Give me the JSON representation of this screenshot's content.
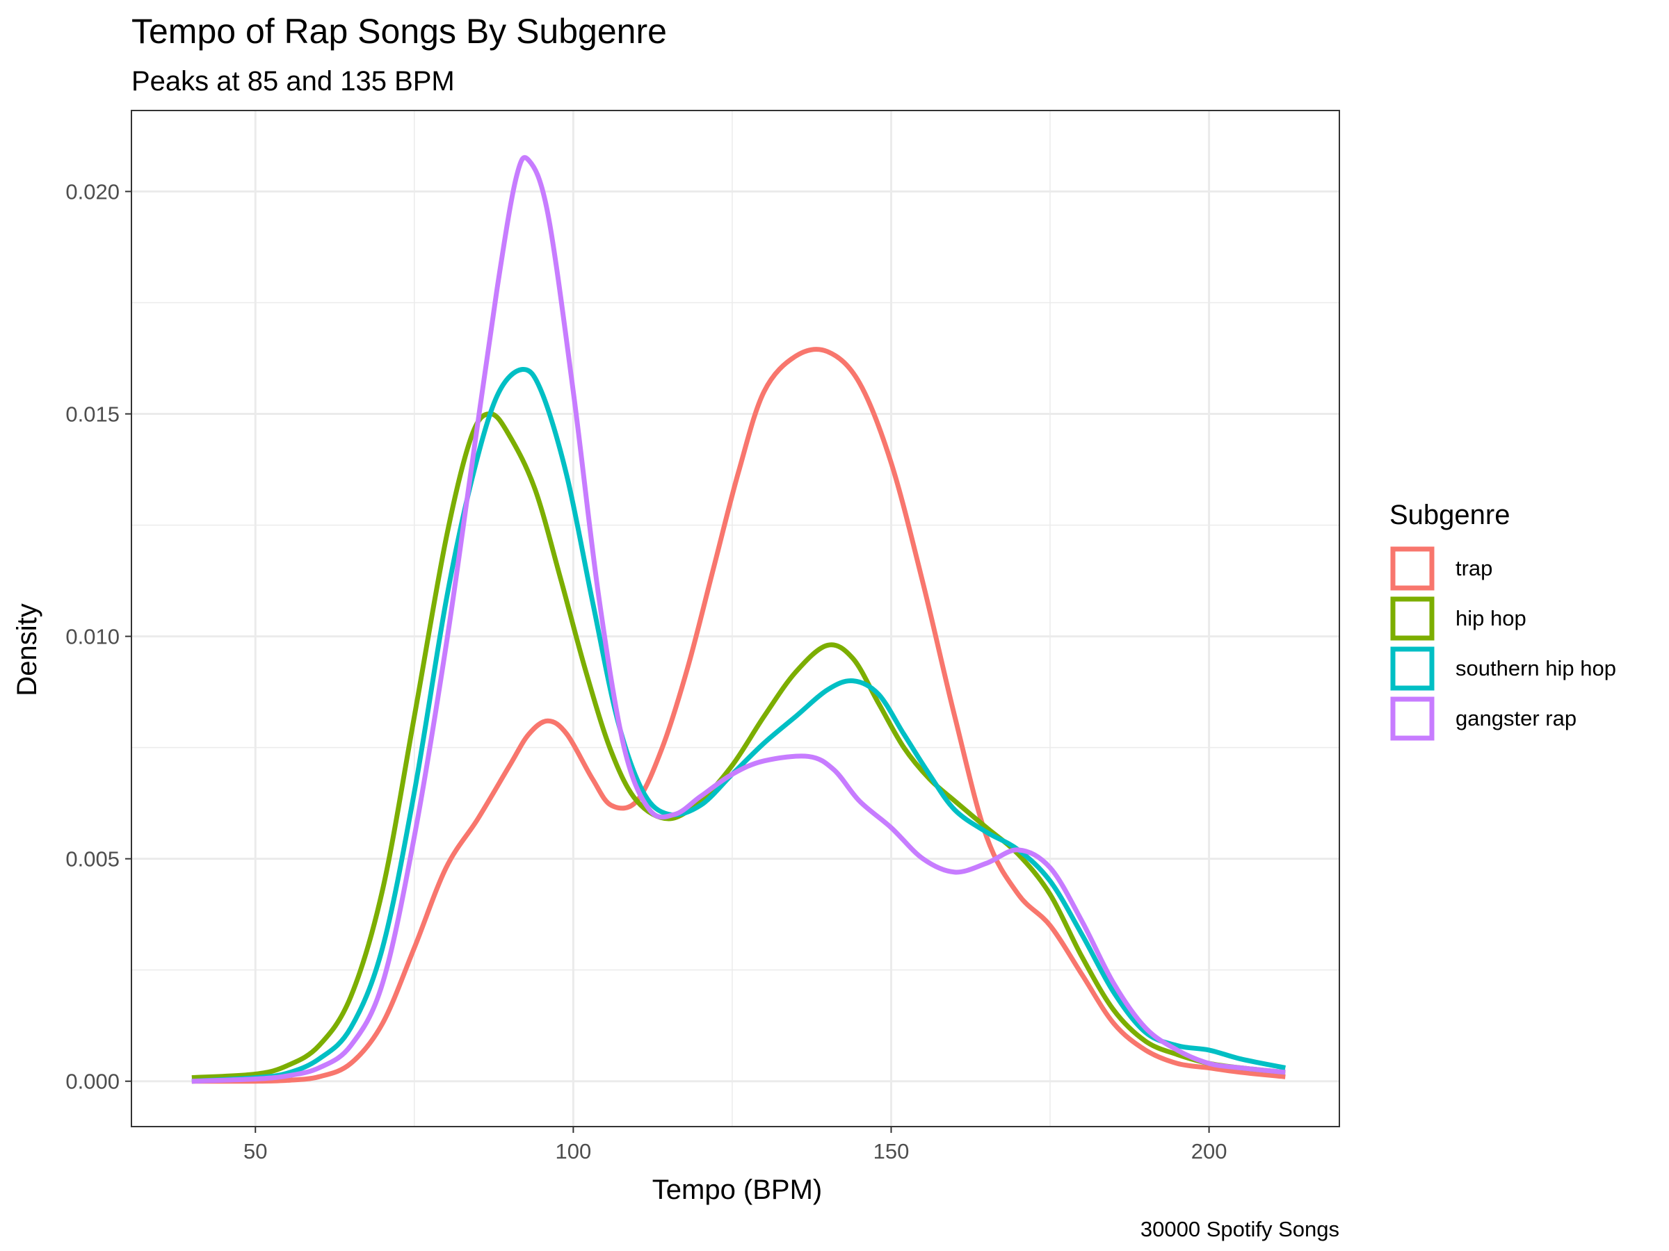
{
  "chart_data": {
    "type": "line",
    "title": "Tempo of Rap Songs By Subgenre",
    "subtitle": "Peaks at 85 and 135 BPM",
    "caption": "30000 Spotify Songs",
    "xlabel": "Tempo (BPM)",
    "ylabel": "Density",
    "xlim": [
      30.5,
      220.5
    ],
    "ylim": [
      -0.00102,
      0.02182
    ],
    "x_ticks": [
      50,
      100,
      150,
      200
    ],
    "x_tick_labels": [
      "50",
      "100",
      "150",
      "200"
    ],
    "y_ticks": [
      0,
      0.005,
      0.01,
      0.015,
      0.02
    ],
    "y_tick_labels": [
      "0.000",
      "0.005",
      "0.010",
      "0.015",
      "0.020"
    ],
    "grid": true,
    "legend": {
      "title": "Subgenre",
      "position": "right"
    },
    "series": [
      {
        "name": "trap",
        "color": "#F8766D",
        "points": [
          [
            40,
            0.0
          ],
          [
            50,
            0.0
          ],
          [
            55,
            2e-05
          ],
          [
            60,
            0.0001
          ],
          [
            65,
            0.0004
          ],
          [
            70,
            0.0013
          ],
          [
            75,
            0.003
          ],
          [
            80,
            0.0048
          ],
          [
            85,
            0.0059
          ],
          [
            90,
            0.0071
          ],
          [
            93,
            0.0078
          ],
          [
            96,
            0.0081
          ],
          [
            99,
            0.0078
          ],
          [
            103,
            0.0068
          ],
          [
            106,
            0.0062
          ],
          [
            110,
            0.0063
          ],
          [
            114,
            0.0075
          ],
          [
            118,
            0.0093
          ],
          [
            122,
            0.0115
          ],
          [
            126,
            0.0137
          ],
          [
            130,
            0.0155
          ],
          [
            135,
            0.0163
          ],
          [
            140,
            0.0164
          ],
          [
            145,
            0.0157
          ],
          [
            150,
            0.0139
          ],
          [
            155,
            0.0112
          ],
          [
            160,
            0.0082
          ],
          [
            165,
            0.0055
          ],
          [
            170,
            0.0042
          ],
          [
            175,
            0.0035
          ],
          [
            180,
            0.0024
          ],
          [
            185,
            0.0013
          ],
          [
            190,
            0.0007
          ],
          [
            195,
            0.0004
          ],
          [
            200,
            0.0003
          ],
          [
            205,
            0.0002
          ],
          [
            212,
            0.0001
          ]
        ]
      },
      {
        "name": "hip hop",
        "color": "#7CAE00",
        "points": [
          [
            40,
            8e-05
          ],
          [
            50,
            0.00016
          ],
          [
            55,
            0.00035
          ],
          [
            60,
            0.0008
          ],
          [
            65,
            0.0019
          ],
          [
            70,
            0.0043
          ],
          [
            75,
            0.0082
          ],
          [
            80,
            0.0122
          ],
          [
            84,
            0.0145
          ],
          [
            87,
            0.015
          ],
          [
            90,
            0.0145
          ],
          [
            94,
            0.0133
          ],
          [
            98,
            0.0113
          ],
          [
            102,
            0.0092
          ],
          [
            106,
            0.0074
          ],
          [
            110,
            0.0063
          ],
          [
            115,
            0.0059
          ],
          [
            120,
            0.0063
          ],
          [
            125,
            0.0071
          ],
          [
            130,
            0.0082
          ],
          [
            135,
            0.0092
          ],
          [
            140,
            0.0098
          ],
          [
            144,
            0.0095
          ],
          [
            148,
            0.0085
          ],
          [
            152,
            0.0075
          ],
          [
            156,
            0.0068
          ],
          [
            160,
            0.0063
          ],
          [
            165,
            0.0057
          ],
          [
            170,
            0.0051
          ],
          [
            175,
            0.0042
          ],
          [
            180,
            0.0028
          ],
          [
            185,
            0.0016
          ],
          [
            190,
            0.0009
          ],
          [
            195,
            0.0006
          ],
          [
            200,
            0.0004
          ],
          [
            205,
            0.0003
          ],
          [
            212,
            0.0002
          ]
        ]
      },
      {
        "name": "southern hip hop",
        "color": "#00BFC4",
        "points": [
          [
            40,
            0.0
          ],
          [
            50,
            8e-05
          ],
          [
            55,
            0.00018
          ],
          [
            60,
            0.0005
          ],
          [
            65,
            0.0012
          ],
          [
            70,
            0.003
          ],
          [
            75,
            0.0065
          ],
          [
            80,
            0.0108
          ],
          [
            84,
            0.0135
          ],
          [
            88,
            0.0154
          ],
          [
            92,
            0.016
          ],
          [
            95,
            0.0155
          ],
          [
            99,
            0.0136
          ],
          [
            103,
            0.0108
          ],
          [
            107,
            0.0081
          ],
          [
            111,
            0.0065
          ],
          [
            115,
            0.006
          ],
          [
            120,
            0.0062
          ],
          [
            125,
            0.0069
          ],
          [
            130,
            0.0076
          ],
          [
            135,
            0.0082
          ],
          [
            140,
            0.0088
          ],
          [
            144,
            0.009
          ],
          [
            148,
            0.0087
          ],
          [
            152,
            0.0078
          ],
          [
            156,
            0.0069
          ],
          [
            160,
            0.0061
          ],
          [
            165,
            0.0056
          ],
          [
            170,
            0.0052
          ],
          [
            175,
            0.0045
          ],
          [
            180,
            0.0033
          ],
          [
            185,
            0.002
          ],
          [
            190,
            0.0011
          ],
          [
            195,
            0.0008
          ],
          [
            200,
            0.0007
          ],
          [
            205,
            0.0005
          ],
          [
            212,
            0.0003
          ]
        ]
      },
      {
        "name": "gangster rap",
        "color": "#C77CFF",
        "points": [
          [
            40,
            0.0
          ],
          [
            50,
            5e-05
          ],
          [
            55,
            0.00012
          ],
          [
            60,
            0.0003
          ],
          [
            65,
            0.0008
          ],
          [
            70,
            0.0022
          ],
          [
            75,
            0.0055
          ],
          [
            80,
            0.0098
          ],
          [
            84,
            0.0138
          ],
          [
            88,
            0.0178
          ],
          [
            91,
            0.0203
          ],
          [
            93,
            0.0207
          ],
          [
            96,
            0.0195
          ],
          [
            100,
            0.0155
          ],
          [
            104,
            0.0109
          ],
          [
            108,
            0.0075
          ],
          [
            112,
            0.0061
          ],
          [
            116,
            0.006
          ],
          [
            120,
            0.0064
          ],
          [
            125,
            0.0069
          ],
          [
            130,
            0.0072
          ],
          [
            137,
            0.0073
          ],
          [
            141,
            0.007
          ],
          [
            145,
            0.0063
          ],
          [
            150,
            0.0057
          ],
          [
            155,
            0.005
          ],
          [
            160,
            0.0047
          ],
          [
            165,
            0.0049
          ],
          [
            170,
            0.0052
          ],
          [
            175,
            0.0048
          ],
          [
            180,
            0.0036
          ],
          [
            185,
            0.0022
          ],
          [
            190,
            0.0012
          ],
          [
            195,
            0.0007
          ],
          [
            200,
            0.0004
          ],
          [
            205,
            0.0003
          ],
          [
            212,
            0.0002
          ]
        ]
      }
    ]
  }
}
